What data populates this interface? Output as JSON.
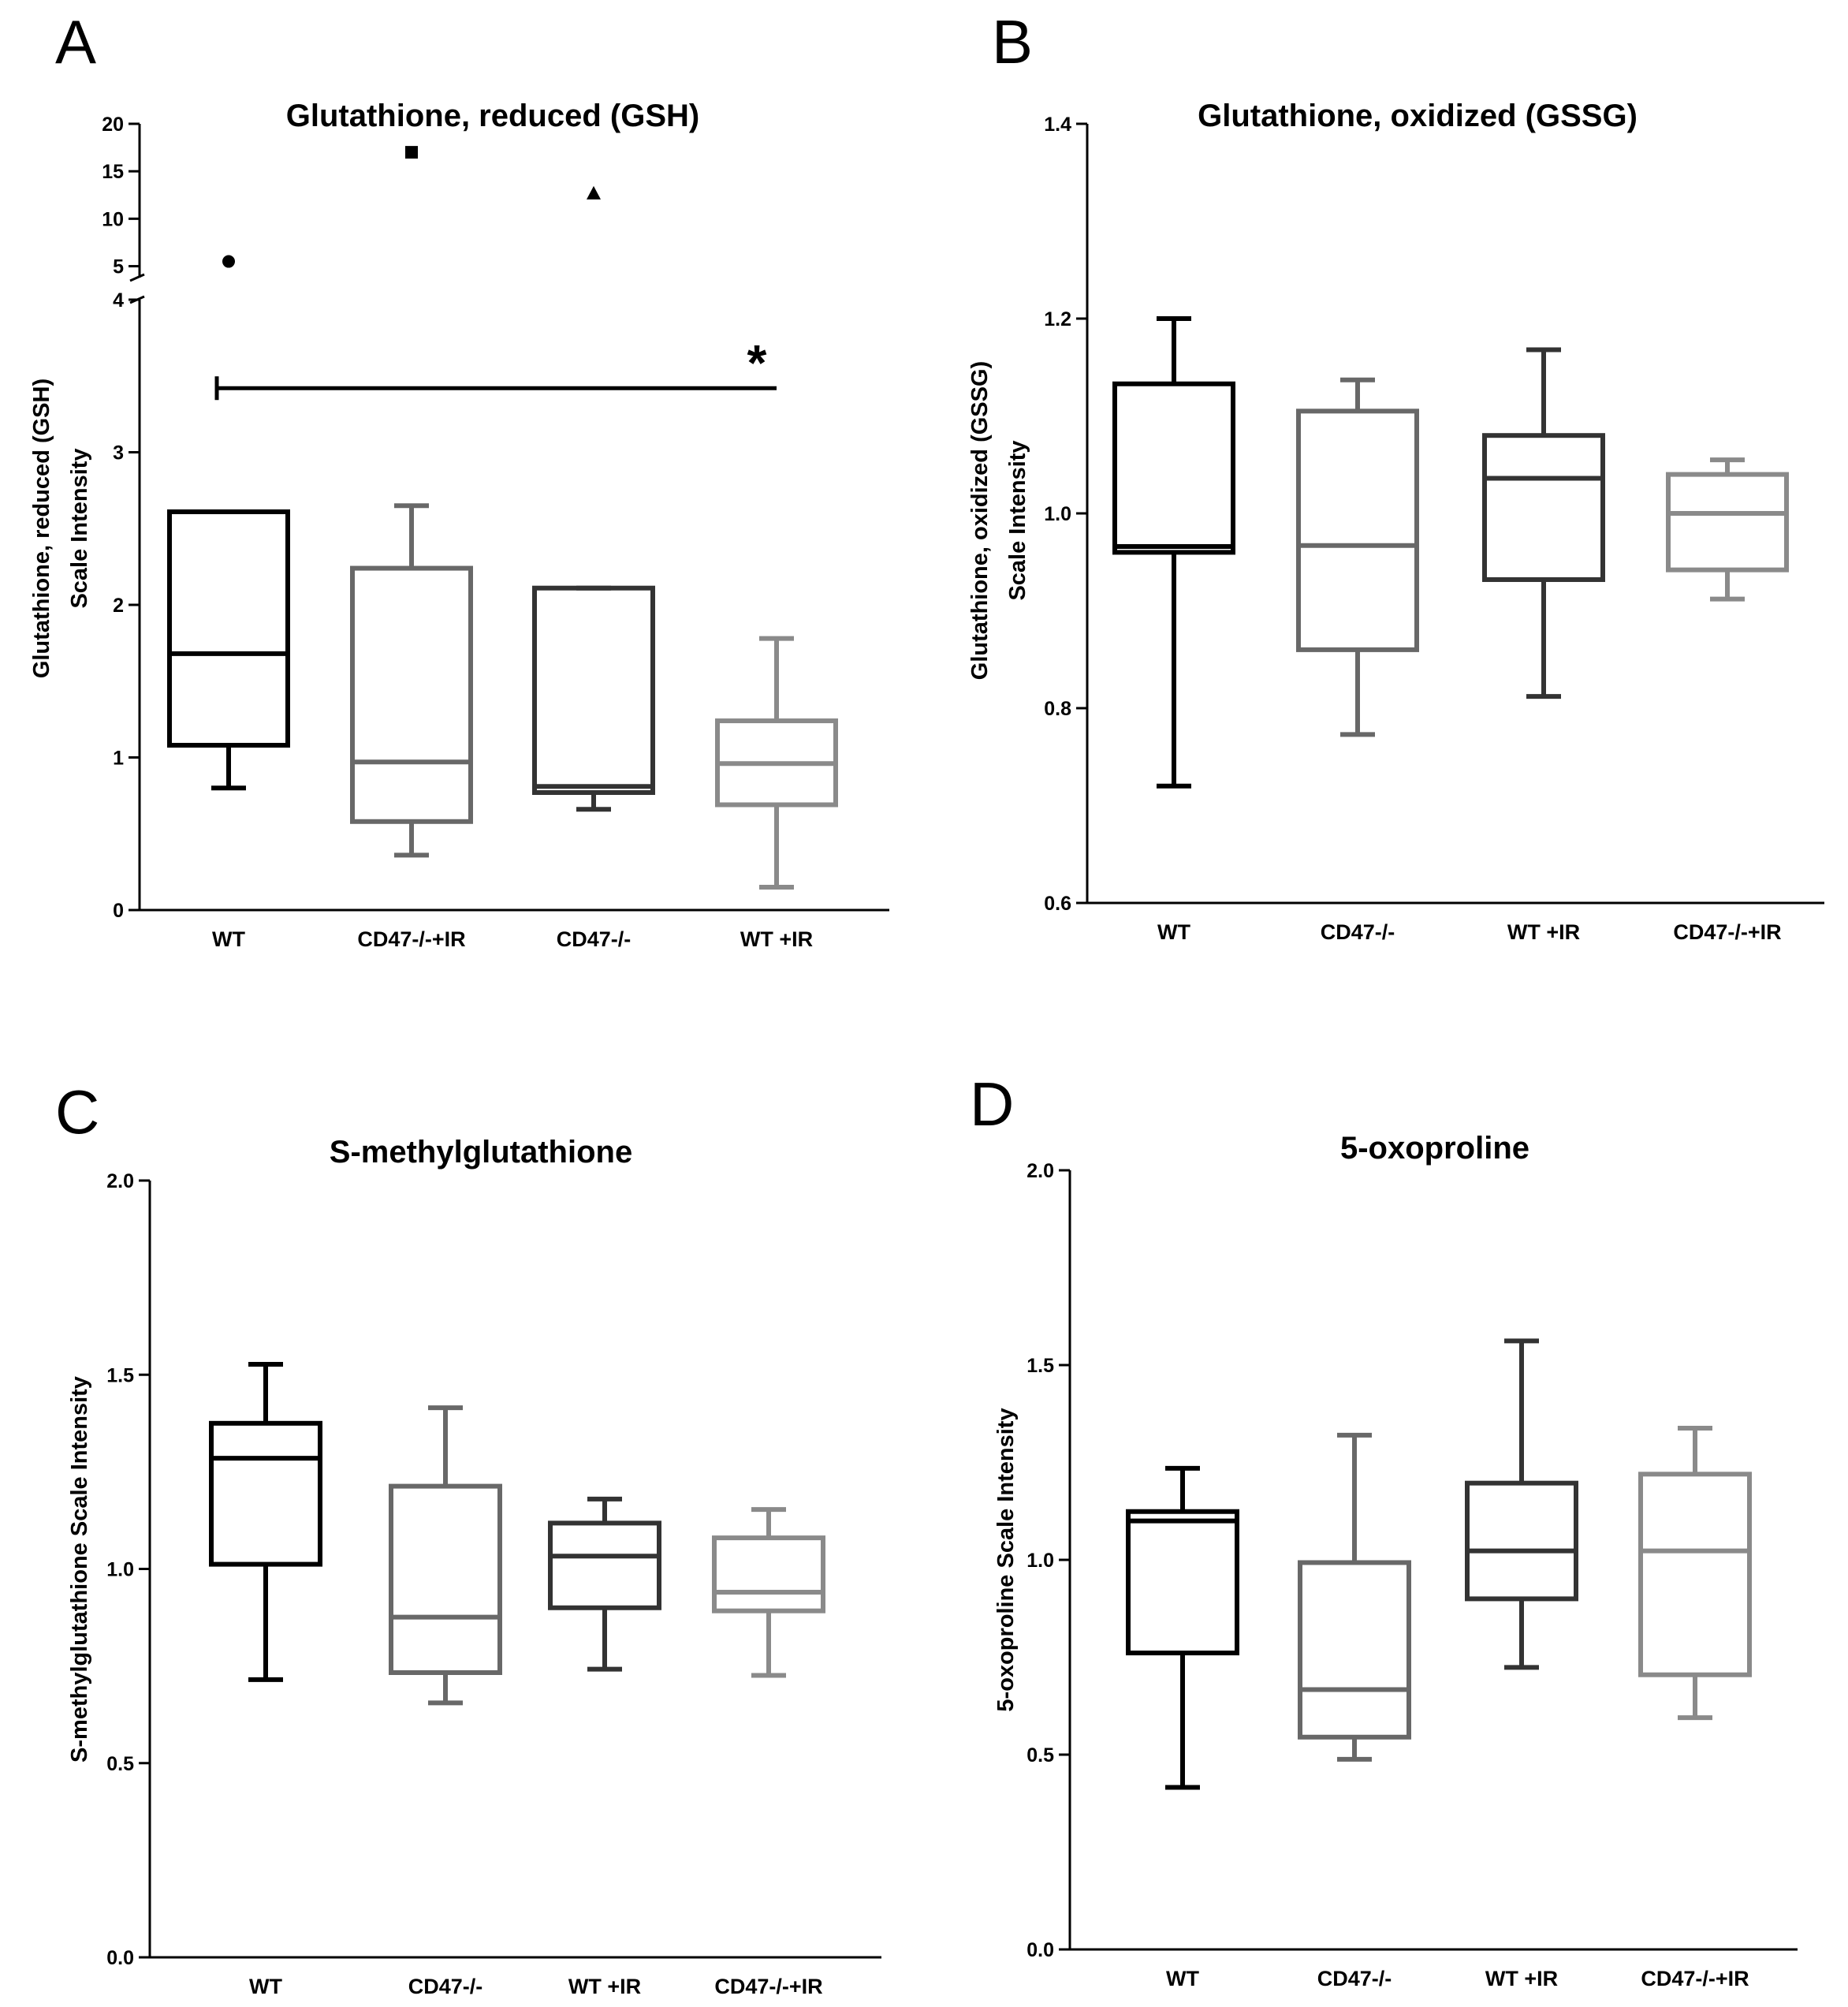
{
  "chart_data": [
    {
      "panel": "A",
      "type": "box",
      "title": "Glutathione, reduced (GSH)",
      "ylabel_lines": [
        "Glutathione, reduced (GSH)",
        "Scale Intensity"
      ],
      "categories": [
        "WT",
        "CD47-/-+IR",
        "CD47-/-",
        "WT +IR"
      ],
      "colors": [
        "#000000",
        "#686868",
        "#333333",
        "#8a8a8a"
      ],
      "ylim": [
        0,
        4
      ],
      "yticks": [
        0,
        1,
        2,
        3,
        4
      ],
      "upper_segment": {
        "ylim": [
          3.8,
          20
        ],
        "yticks": [
          5,
          10,
          15,
          20
        ]
      },
      "boxes": [
        {
          "min": 0.8,
          "q1": 1.08,
          "median": 1.68,
          "q3": 2.61,
          "max": 2.61
        },
        {
          "min": 0.36,
          "q1": 0.58,
          "median": 0.97,
          "q3": 2.24,
          "max": 2.65
        },
        {
          "min": 0.66,
          "q1": 0.77,
          "median": 0.81,
          "q3": 2.11,
          "max": 2.11
        },
        {
          "min": 0.15,
          "q1": 0.69,
          "median": 0.96,
          "q3": 1.24,
          "max": 1.78
        }
      ],
      "outliers": [
        {
          "category": "WT",
          "value": 5.5,
          "marker": "circle"
        },
        {
          "category": "CD47-/-+IR",
          "value": 17.0,
          "marker": "square"
        },
        {
          "category": "CD47-/-",
          "value": 12.7,
          "marker": "triangle"
        }
      ],
      "significance": {
        "from": "WT",
        "to": "WT +IR",
        "y": 3.42,
        "label": "*"
      }
    },
    {
      "panel": "B",
      "type": "box",
      "title": "Glutathione, oxidized (GSSG)",
      "ylabel_lines": [
        "Glutathione, oxidized (GSSG)",
        "Scale Intensity"
      ],
      "categories": [
        "WT",
        "CD47-/-",
        "WT +IR",
        "CD47-/-+IR"
      ],
      "colors": [
        "#000000",
        "#686868",
        "#333333",
        "#8a8a8a"
      ],
      "ylim": [
        0.6,
        1.4
      ],
      "yticks": [
        "0.6",
        "0.8",
        "1.0",
        "1.2",
        "1.4"
      ],
      "boxes": [
        {
          "min": 0.72,
          "q1": 0.96,
          "median": 0.966,
          "q3": 1.133,
          "max": 1.2
        },
        {
          "min": 0.773,
          "q1": 0.86,
          "median": 0.967,
          "q3": 1.105,
          "max": 1.137
        },
        {
          "min": 0.812,
          "q1": 0.932,
          "median": 1.036,
          "q3": 1.08,
          "max": 1.168
        },
        {
          "min": 0.912,
          "q1": 0.942,
          "median": 1.0,
          "q3": 1.04,
          "max": 1.055
        }
      ]
    },
    {
      "panel": "C",
      "type": "box",
      "title": "S-methylglutathione",
      "ylabel_lines": [
        "S-methylglutathione Scale Intensity"
      ],
      "categories": [
        "WT",
        "CD47-/-",
        "WT +IR",
        "CD47-/-+IR"
      ],
      "colors": [
        "#000000",
        "#686868",
        "#333333",
        "#8a8a8a"
      ],
      "ylim": [
        0,
        2.0
      ],
      "yticks": [
        "0.0",
        "0.5",
        "1.0",
        "1.5",
        "2.0"
      ],
      "boxes": [
        {
          "min": 0.715,
          "q1": 1.012,
          "median": 1.285,
          "q3": 1.375,
          "max": 1.527
        },
        {
          "min": 0.655,
          "q1": 0.733,
          "median": 0.876,
          "q3": 1.213,
          "max": 1.415
        },
        {
          "min": 0.742,
          "q1": 0.9,
          "median": 1.033,
          "q3": 1.118,
          "max": 1.18
        },
        {
          "min": 0.726,
          "q1": 0.892,
          "median": 0.94,
          "q3": 1.08,
          "max": 1.153
        }
      ]
    },
    {
      "panel": "D",
      "type": "box",
      "title": "5-oxoproline",
      "ylabel_lines": [
        "5-oxoproline Scale Intensity"
      ],
      "categories": [
        "WT",
        "CD47-/-",
        "WT +IR",
        "CD47-/-+IR"
      ],
      "colors": [
        "#000000",
        "#686868",
        "#333333",
        "#8a8a8a"
      ],
      "ylim": [
        0,
        2.0
      ],
      "yticks": [
        "0.0",
        "0.5",
        "1.0",
        "1.5",
        "2.0"
      ],
      "boxes": [
        {
          "min": 0.416,
          "q1": 0.761,
          "median": 1.1,
          "q3": 1.124,
          "max": 1.235
        },
        {
          "min": 0.488,
          "q1": 0.545,
          "median": 0.667,
          "q3": 0.993,
          "max": 1.32
        },
        {
          "min": 0.724,
          "q1": 0.9,
          "median": 1.023,
          "q3": 1.197,
          "max": 1.562
        },
        {
          "min": 0.595,
          "q1": 0.705,
          "median": 1.023,
          "q3": 1.22,
          "max": 1.338
        }
      ]
    }
  ]
}
